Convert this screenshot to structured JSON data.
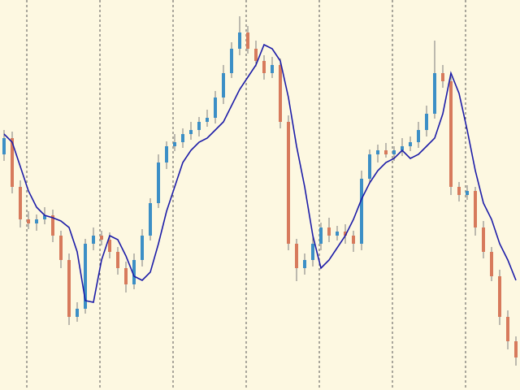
{
  "chart_data": {
    "type": "candlestick",
    "open": [
      290,
      310,
      250,
      210,
      205,
      210,
      215,
      190,
      160,
      90,
      100,
      180,
      190,
      185,
      170,
      150,
      130,
      160,
      190,
      230,
      280,
      300,
      305,
      315,
      320,
      330,
      335,
      360,
      390,
      420,
      440,
      420,
      405,
      390,
      400,
      330,
      180,
      150,
      160,
      180,
      200,
      190,
      195,
      190,
      180,
      260,
      290,
      295,
      290,
      295,
      300,
      305,
      320,
      340,
      390,
      380,
      250,
      240,
      245,
      200,
      170,
      140,
      90,
      60
    ],
    "high": [
      320,
      318,
      258,
      220,
      216,
      225,
      222,
      196,
      168,
      108,
      186,
      200,
      196,
      194,
      176,
      158,
      168,
      198,
      236,
      290,
      306,
      315,
      322,
      330,
      336,
      345,
      368,
      400,
      428,
      460,
      448,
      430,
      412,
      410,
      408,
      338,
      186,
      168,
      192,
      206,
      212,
      202,
      204,
      196,
      270,
      296,
      302,
      304,
      300,
      310,
      312,
      330,
      350,
      430,
      400,
      386,
      256,
      252,
      250,
      208,
      176,
      148,
      98,
      66
    ],
    "low": [
      282,
      242,
      200,
      198,
      196,
      204,
      182,
      150,
      80,
      84,
      94,
      172,
      178,
      162,
      142,
      120,
      124,
      152,
      184,
      224,
      272,
      294,
      298,
      308,
      312,
      324,
      328,
      352,
      384,
      412,
      414,
      398,
      382,
      384,
      322,
      172,
      134,
      142,
      152,
      172,
      182,
      184,
      180,
      170,
      172,
      254,
      280,
      286,
      282,
      288,
      294,
      298,
      312,
      334,
      372,
      240,
      232,
      234,
      190,
      162,
      134,
      80,
      50,
      30
    ],
    "close": [
      310,
      250,
      210,
      205,
      210,
      215,
      190,
      160,
      90,
      100,
      180,
      190,
      185,
      170,
      150,
      130,
      160,
      190,
      230,
      280,
      300,
      305,
      315,
      320,
      330,
      335,
      360,
      390,
      420,
      440,
      420,
      405,
      390,
      400,
      330,
      180,
      150,
      160,
      180,
      200,
      190,
      195,
      190,
      180,
      260,
      290,
      295,
      290,
      295,
      300,
      305,
      320,
      340,
      390,
      380,
      250,
      240,
      245,
      200,
      170,
      140,
      90,
      60,
      40
    ],
    "ma": {
      "color": "#1c1ca8",
      "values": [
        315,
        305,
        275,
        245,
        225,
        215,
        212,
        208,
        200,
        170,
        110,
        108,
        160,
        190,
        185,
        165,
        140,
        135,
        145,
        180,
        220,
        250,
        280,
        295,
        305,
        310,
        320,
        330,
        350,
        370,
        385,
        400,
        425,
        420,
        405,
        360,
        300,
        250,
        190,
        150,
        160,
        175,
        190,
        210,
        235,
        255,
        270,
        280,
        285,
        295,
        285,
        290,
        300,
        310,
        340,
        390,
        365,
        320,
        270,
        230,
        210,
        180,
        160,
        135
      ]
    },
    "up_color": "#3c8fc6",
    "down_color": "#d77a5c",
    "ylim": [
      0,
      480
    ]
  }
}
